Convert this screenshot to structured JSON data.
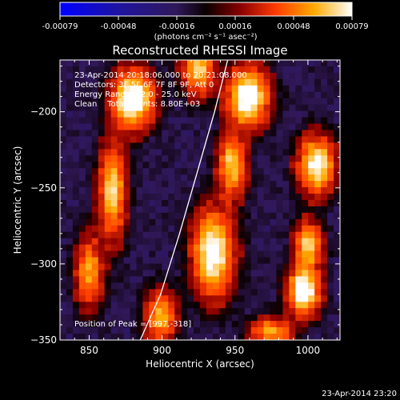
{
  "chart_data": {
    "type": "heatmap",
    "title": "Reconstructed RHESSI Image",
    "xlabel": "Heliocentric X (arcsec)",
    "ylabel": "Heliocentric Y (arcsec)",
    "xlim": [
      830,
      1022
    ],
    "ylim": [
      -350,
      -166
    ],
    "xticks": [
      850,
      900,
      950,
      1000
    ],
    "yticks": [
      -200,
      -250,
      -300,
      -350
    ],
    "colorbar": {
      "colormap": "blue-black-red-yellow-white",
      "range": [
        -0.00079,
        0.00079
      ],
      "ticks": [
        "-0.00079",
        "-0.00048",
        "-0.00016",
        "0.00016",
        "0.00048",
        "0.00079"
      ],
      "units": "(photons cm⁻² s⁻¹ asec⁻²)"
    },
    "annotations": [
      "23-Apr-2014 20:18:06.000 to 20:21:08.000",
      "Detectors: 3F 5F 6F 7F 8F 9F, Att 0",
      "Energy Range: 12.0 - 25.0 keV",
      "Clean    Total counts: 8.80E+03",
      "Position of Peak = [997,-318]"
    ],
    "limb": [
      [
        945,
        -166
      ],
      [
        936,
        -200
      ],
      [
        924,
        -240
      ],
      [
        912,
        -280
      ],
      [
        899,
        -320
      ],
      [
        885,
        -350
      ]
    ],
    "sources": [
      {
        "x": 880,
        "y": -192,
        "sx": 9,
        "sy": 12,
        "amp": 1.0
      },
      {
        "x": 866,
        "y": -252,
        "sx": 6,
        "sy": 20,
        "amp": 0.72
      },
      {
        "x": 850,
        "y": -305,
        "sx": 6,
        "sy": 15,
        "amp": 0.55
      },
      {
        "x": 899,
        "y": -335,
        "sx": 7,
        "sy": 11,
        "amp": 0.6
      },
      {
        "x": 925,
        "y": -170,
        "sx": 7,
        "sy": 12,
        "amp": 0.72
      },
      {
        "x": 959,
        "y": -190,
        "sx": 9,
        "sy": 12,
        "amp": 1.0
      },
      {
        "x": 948,
        "y": -235,
        "sx": 6,
        "sy": 14,
        "amp": 0.68
      },
      {
        "x": 935,
        "y": -293,
        "sx": 9,
        "sy": 18,
        "amp": 0.9
      },
      {
        "x": 1006,
        "y": -235,
        "sx": 8,
        "sy": 12,
        "amp": 0.85
      },
      {
        "x": 1000,
        "y": -288,
        "sx": 6,
        "sy": 10,
        "amp": 0.68
      },
      {
        "x": 997,
        "y": -318,
        "sx": 7,
        "sy": 10,
        "amp": 1.0
      },
      {
        "x": 975,
        "y": -345,
        "sx": 9,
        "sy": 6,
        "amp": 0.6
      }
    ],
    "grid": false
  },
  "footer": {
    "timestamp": "23-Apr-2014 23:20"
  }
}
